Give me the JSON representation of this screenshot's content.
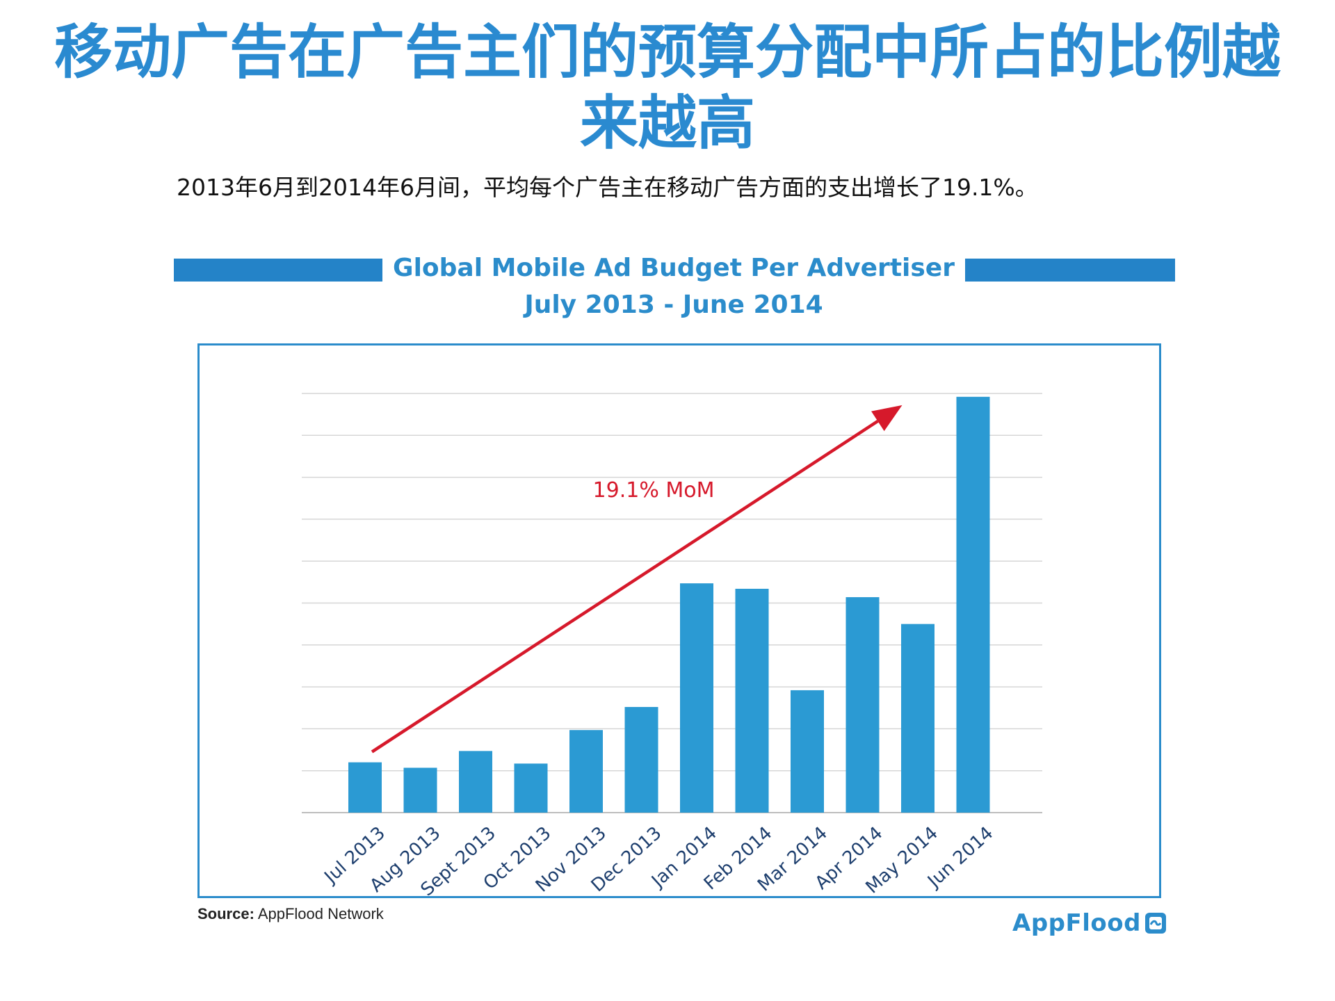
{
  "page": {
    "title": "移动广告在广告主们的预算分配中所占的比例越来越高",
    "subtitle": "2013年6月到2014年6月间，平均每个广告主在移动广告方面的支出增长了19.1%。"
  },
  "chart_header": {
    "line1": "Global Mobile Ad Budget Per Advertiser",
    "line2": "July 2013 - June 2014"
  },
  "chart_data": {
    "type": "bar",
    "categories": [
      "Jul 2013",
      "Aug 2013",
      "Sept 2013",
      "Oct 2013",
      "Nov 2013",
      "Dec 2013",
      "Jan 2014",
      "Feb 2014",
      "Mar 2014",
      "Apr 2014",
      "May 2014",
      "Jun 2014"
    ],
    "values": [
      1.2,
      1.07,
      1.47,
      1.17,
      1.97,
      2.52,
      5.47,
      5.34,
      2.92,
      5.14,
      4.5,
      9.92
    ],
    "ylim": [
      0,
      10
    ],
    "grid": true,
    "gridlines": 10,
    "bar_color": "#2b9ad3",
    "annotation": {
      "text": "19.1% MoM",
      "color": "#d6192b"
    }
  },
  "source": {
    "label": "Source:",
    "text": "AppFlood Network"
  },
  "logo": {
    "text": "AppFlood",
    "icon": "wave-icon"
  },
  "colors": {
    "title_blue": "#2a8ad0",
    "accent_blue": "#2483c8",
    "arrow_red": "#d6192b"
  }
}
